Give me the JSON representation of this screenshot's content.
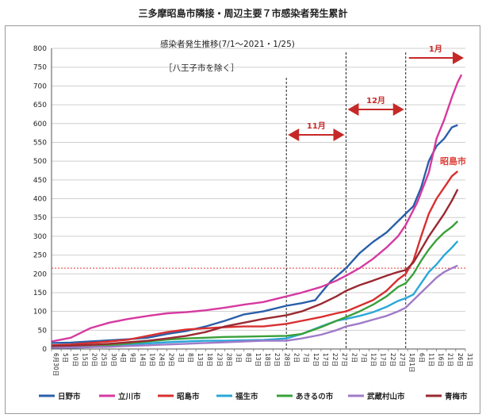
{
  "title": "三多摩昭島市隣接・周辺主要７市感染者発生累計",
  "chart_data": {
    "type": "line",
    "subtitle": "感染者発生推移(7/1～2021・1/25)",
    "note": "［八王子市を除く］",
    "highlight_label": "昭島市",
    "ylim": [
      0,
      800
    ],
    "y_ticks": [
      0,
      50,
      100,
      150,
      200,
      250,
      300,
      350,
      400,
      450,
      500,
      550,
      600,
      650,
      700,
      750,
      800
    ],
    "x_labels": [
      "6月30日",
      "5日",
      "10日",
      "15日",
      "20日",
      "25日",
      "30日",
      "4日",
      "9日",
      "14日",
      "19日",
      "24日",
      "29日",
      "3日",
      "8日",
      "13日",
      "18日",
      "23日",
      "28日",
      "3日",
      "8日",
      "13日",
      "18日",
      "23日",
      "28日",
      "2日",
      "7日",
      "12日",
      "17日",
      "22日",
      "27日",
      "2日",
      "7日",
      "12日",
      "17日",
      "22日",
      "27日",
      "1月1日",
      "6日",
      "11日",
      "16日",
      "21日",
      "26日",
      "31日"
    ],
    "x_day_range": [
      0,
      215
    ],
    "reference_line": {
      "value": 215,
      "color": "#e53935"
    },
    "period_markers": [
      {
        "label": "11月",
        "start": 122,
        "end": 153
      },
      {
        "label": "12月",
        "start": 153,
        "end": 184
      },
      {
        "label": "1月",
        "start": 184,
        "end": 215
      }
    ],
    "series": [
      {
        "name": "日野市",
        "color": "#2a5fa8",
        "points": [
          [
            0,
            16
          ],
          [
            10,
            17
          ],
          [
            20,
            20
          ],
          [
            30,
            23
          ],
          [
            40,
            26
          ],
          [
            50,
            30
          ],
          [
            60,
            40
          ],
          [
            70,
            48
          ],
          [
            80,
            60
          ],
          [
            90,
            75
          ],
          [
            100,
            92
          ],
          [
            110,
            100
          ],
          [
            122,
            115
          ],
          [
            130,
            122
          ],
          [
            137,
            130
          ],
          [
            145,
            180
          ],
          [
            153,
            215
          ],
          [
            160,
            255
          ],
          [
            167,
            285
          ],
          [
            174,
            310
          ],
          [
            180,
            340
          ],
          [
            184,
            360
          ],
          [
            188,
            380
          ],
          [
            192,
            430
          ],
          [
            196,
            500
          ],
          [
            200,
            540
          ],
          [
            204,
            560
          ],
          [
            208,
            590
          ],
          [
            211,
            596
          ]
        ]
      },
      {
        "name": "立川市",
        "color": "#d63aa0",
        "points": [
          [
            0,
            20
          ],
          [
            5,
            25
          ],
          [
            10,
            30
          ],
          [
            20,
            55
          ],
          [
            30,
            70
          ],
          [
            40,
            80
          ],
          [
            50,
            88
          ],
          [
            60,
            95
          ],
          [
            70,
            98
          ],
          [
            80,
            103
          ],
          [
            90,
            110
          ],
          [
            100,
            118
          ],
          [
            110,
            125
          ],
          [
            122,
            140
          ],
          [
            130,
            150
          ],
          [
            140,
            165
          ],
          [
            148,
            182
          ],
          [
            153,
            195
          ],
          [
            160,
            215
          ],
          [
            167,
            240
          ],
          [
            174,
            270
          ],
          [
            180,
            300
          ],
          [
            184,
            330
          ],
          [
            190,
            390
          ],
          [
            196,
            470
          ],
          [
            200,
            560
          ],
          [
            204,
            610
          ],
          [
            208,
            670
          ],
          [
            211,
            710
          ],
          [
            213,
            730
          ]
        ]
      },
      {
        "name": "昭島市",
        "color": "#d93030",
        "points": [
          [
            0,
            10
          ],
          [
            10,
            12
          ],
          [
            20,
            16
          ],
          [
            30,
            20
          ],
          [
            40,
            25
          ],
          [
            50,
            35
          ],
          [
            60,
            45
          ],
          [
            70,
            52
          ],
          [
            80,
            55
          ],
          [
            90,
            58
          ],
          [
            100,
            60
          ],
          [
            110,
            60
          ],
          [
            122,
            67
          ],
          [
            130,
            75
          ],
          [
            140,
            85
          ],
          [
            148,
            95
          ],
          [
            153,
            100
          ],
          [
            160,
            115
          ],
          [
            167,
            130
          ],
          [
            174,
            155
          ],
          [
            180,
            185
          ],
          [
            184,
            200
          ],
          [
            188,
            235
          ],
          [
            192,
            300
          ],
          [
            196,
            360
          ],
          [
            200,
            400
          ],
          [
            204,
            430
          ],
          [
            208,
            460
          ],
          [
            211,
            473
          ]
        ]
      },
      {
        "name": "福生市",
        "color": "#29a8d8",
        "points": [
          [
            0,
            2
          ],
          [
            10,
            3
          ],
          [
            20,
            5
          ],
          [
            30,
            8
          ],
          [
            40,
            12
          ],
          [
            50,
            15
          ],
          [
            60,
            18
          ],
          [
            70,
            20
          ],
          [
            80,
            22
          ],
          [
            90,
            22
          ],
          [
            100,
            23
          ],
          [
            110,
            24
          ],
          [
            122,
            28
          ],
          [
            130,
            40
          ],
          [
            140,
            60
          ],
          [
            148,
            75
          ],
          [
            153,
            80
          ],
          [
            160,
            88
          ],
          [
            167,
            98
          ],
          [
            174,
            112
          ],
          [
            180,
            128
          ],
          [
            184,
            135
          ],
          [
            188,
            145
          ],
          [
            192,
            175
          ],
          [
            196,
            205
          ],
          [
            200,
            225
          ],
          [
            204,
            250
          ],
          [
            208,
            270
          ],
          [
            211,
            287
          ]
        ]
      },
      {
        "name": "あきるの市",
        "color": "#3aa03a",
        "points": [
          [
            0,
            5
          ],
          [
            10,
            6
          ],
          [
            20,
            8
          ],
          [
            30,
            10
          ],
          [
            40,
            15
          ],
          [
            50,
            20
          ],
          [
            60,
            25
          ],
          [
            70,
            28
          ],
          [
            80,
            30
          ],
          [
            90,
            32
          ],
          [
            100,
            33
          ],
          [
            110,
            34
          ],
          [
            122,
            35
          ],
          [
            130,
            40
          ],
          [
            140,
            58
          ],
          [
            148,
            75
          ],
          [
            153,
            85
          ],
          [
            160,
            100
          ],
          [
            167,
            118
          ],
          [
            174,
            140
          ],
          [
            180,
            165
          ],
          [
            184,
            175
          ],
          [
            188,
            200
          ],
          [
            192,
            235
          ],
          [
            196,
            265
          ],
          [
            200,
            290
          ],
          [
            204,
            310
          ],
          [
            208,
            325
          ],
          [
            211,
            340
          ]
        ]
      },
      {
        "name": "武蔵村山市",
        "color": "#a07ac8",
        "points": [
          [
            0,
            3
          ],
          [
            10,
            4
          ],
          [
            20,
            5
          ],
          [
            30,
            6
          ],
          [
            40,
            8
          ],
          [
            50,
            10
          ],
          [
            60,
            12
          ],
          [
            70,
            14
          ],
          [
            80,
            16
          ],
          [
            90,
            18
          ],
          [
            100,
            20
          ],
          [
            110,
            22
          ],
          [
            122,
            22
          ],
          [
            130,
            28
          ],
          [
            140,
            38
          ],
          [
            148,
            50
          ],
          [
            153,
            60
          ],
          [
            160,
            68
          ],
          [
            167,
            78
          ],
          [
            174,
            88
          ],
          [
            180,
            100
          ],
          [
            184,
            110
          ],
          [
            188,
            130
          ],
          [
            192,
            150
          ],
          [
            196,
            170
          ],
          [
            200,
            190
          ],
          [
            204,
            205
          ],
          [
            208,
            215
          ],
          [
            211,
            222
          ]
        ]
      },
      {
        "name": "青梅市",
        "color": "#9a2a32",
        "points": [
          [
            0,
            8
          ],
          [
            10,
            9
          ],
          [
            20,
            11
          ],
          [
            30,
            14
          ],
          [
            40,
            18
          ],
          [
            50,
            22
          ],
          [
            60,
            28
          ],
          [
            70,
            35
          ],
          [
            80,
            45
          ],
          [
            90,
            60
          ],
          [
            100,
            70
          ],
          [
            110,
            80
          ],
          [
            122,
            90
          ],
          [
            130,
            100
          ],
          [
            140,
            120
          ],
          [
            148,
            140
          ],
          [
            153,
            155
          ],
          [
            160,
            170
          ],
          [
            167,
            182
          ],
          [
            174,
            195
          ],
          [
            180,
            205
          ],
          [
            184,
            210
          ],
          [
            188,
            230
          ],
          [
            192,
            265
          ],
          [
            196,
            300
          ],
          [
            200,
            330
          ],
          [
            204,
            360
          ],
          [
            208,
            395
          ],
          [
            211,
            425
          ]
        ]
      }
    ]
  }
}
